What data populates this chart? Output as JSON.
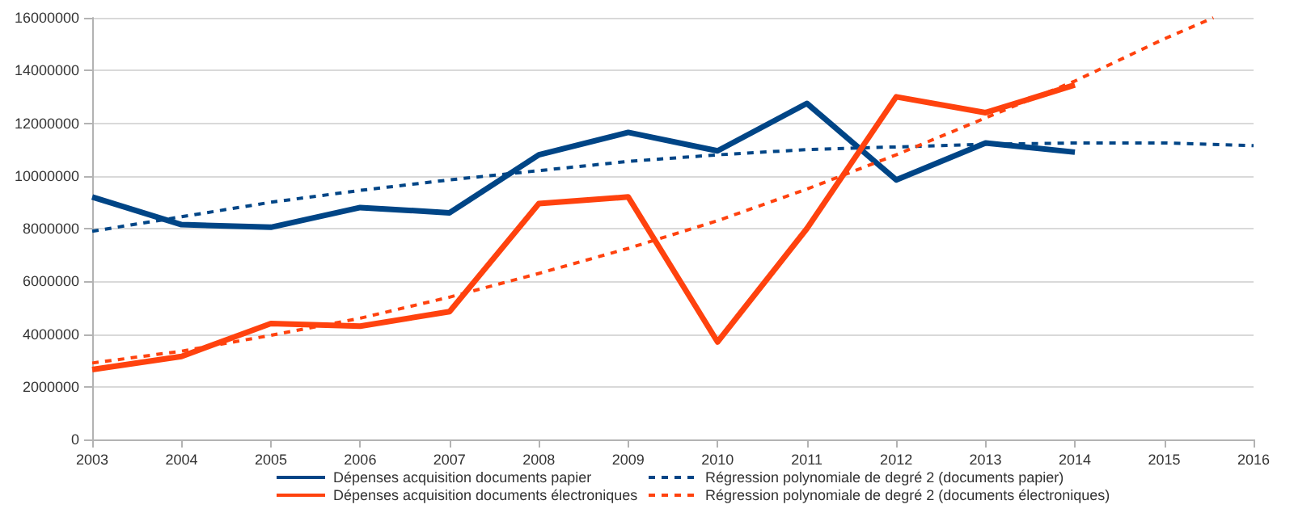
{
  "chart_data": {
    "type": "line",
    "xlim": [
      2003,
      2016
    ],
    "xticks": [
      2003,
      2004,
      2005,
      2006,
      2007,
      2008,
      2009,
      2010,
      2011,
      2012,
      2013,
      2014,
      2015,
      2016
    ],
    "ylim": [
      0,
      16000000
    ],
    "yticks": [
      0,
      2000000,
      4000000,
      6000000,
      8000000,
      10000000,
      12000000,
      14000000,
      16000000
    ],
    "grid": "y",
    "legend": "bottom",
    "marker": "none",
    "series": [
      {
        "name": "Dépenses acquisition documents papier",
        "color": "#004586",
        "line_style": "solid",
        "x": [
          2003,
          2004,
          2005,
          2006,
          2007,
          2008,
          2009,
          2010,
          2011,
          2012,
          2013,
          2014
        ],
        "values": [
          9200000,
          8150000,
          8050000,
          8800000,
          8600000,
          10800000,
          11650000,
          10950000,
          12750000,
          9850000,
          11250000,
          10900000
        ]
      },
      {
        "name": "Régression polynomiale de degré 2 (documents papier)",
        "color": "#004586",
        "line_style": "dashed",
        "x": [
          2003,
          2004,
          2005,
          2006,
          2007,
          2008,
          2009,
          2010,
          2011,
          2012,
          2013,
          2014,
          2015,
          2016
        ],
        "values": [
          7900000,
          8450000,
          9000000,
          9450000,
          9850000,
          10200000,
          10550000,
          10800000,
          11000000,
          11100000,
          11200000,
          11250000,
          11250000,
          11150000
        ]
      },
      {
        "name": "Dépenses acquisition documents électroniques",
        "color": "#ff420e",
        "line_style": "solid",
        "x": [
          2003,
          2004,
          2005,
          2006,
          2007,
          2008,
          2009,
          2010,
          2011,
          2012,
          2013,
          2014
        ],
        "values": [
          2650000,
          3150000,
          4400000,
          4300000,
          4850000,
          8950000,
          9200000,
          3700000,
          8000000,
          13000000,
          12400000,
          13450000
        ]
      },
      {
        "name": "Régression polynomiale de degré 2 (documents électroniques)",
        "color": "#ff420e",
        "line_style": "dashed",
        "x": [
          2003,
          2004,
          2005,
          2006,
          2007,
          2008,
          2009,
          2010,
          2011,
          2012,
          2013,
          2014,
          2015,
          2015.55
        ],
        "values": [
          2900000,
          3350000,
          3950000,
          4600000,
          5400000,
          6300000,
          7250000,
          8300000,
          9500000,
          10800000,
          12200000,
          13600000,
          15200000,
          16000000
        ]
      }
    ]
  }
}
